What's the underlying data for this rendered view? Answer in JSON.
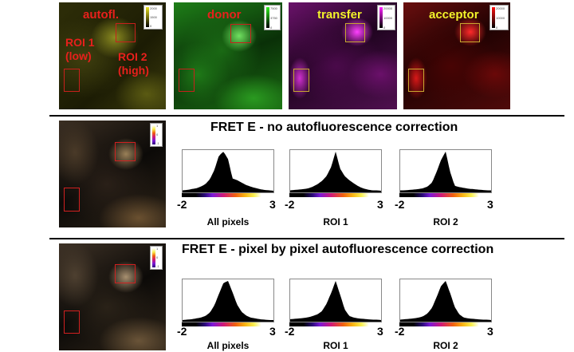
{
  "top_row": {
    "panels": [
      {
        "label": "autofl.",
        "label_color": "#e8201c",
        "channel_color": "#c8c42a",
        "scale": {
          "max": "2000",
          "mid": "1500",
          "min": "0"
        }
      },
      {
        "label": "donor",
        "label_color": "#e8201c",
        "channel_color": "#2fc21f",
        "scale": {
          "max": "7500",
          "mid": "3750",
          "min": "0"
        }
      },
      {
        "label": "transfer",
        "label_color": "#f2f22a",
        "channel_color": "#d21fd2",
        "scale": {
          "max": "20000",
          "mid": "10000",
          "min": "0"
        }
      },
      {
        "label": "acceptor",
        "label_color": "#f2f22a",
        "channel_color": "#d81414",
        "scale": {
          "max": "20000",
          "mid": "10000",
          "min": "0"
        }
      }
    ],
    "roi_annotations": {
      "roi1": "ROI 1\n(low)",
      "roi2": "ROI 2\n(high)"
    }
  },
  "sections": [
    {
      "title": "FRET E  - no autofluorescence correction",
      "image_scale": {
        "max": "1",
        "mid": "0",
        "min": "-1"
      },
      "histograms": [
        {
          "caption": "All  pixels",
          "xmin": "-2",
          "xmax": "3"
        },
        {
          "caption": "ROI 1",
          "xmin": "-2",
          "xmax": "3"
        },
        {
          "caption": "ROI 2",
          "xmin": "-2",
          "xmax": "3"
        }
      ]
    },
    {
      "title": "FRET E  - pixel by pixel autofluorescence correction",
      "image_scale": {
        "max": "1",
        "mid": "0",
        "min": "-1"
      },
      "histograms": [
        {
          "caption": "All pixels",
          "xmin": "-2",
          "xmax": "3"
        },
        {
          "caption": "ROI 1",
          "xmin": "-2",
          "xmax": "3"
        },
        {
          "caption": "ROI 2",
          "xmin": "-2",
          "xmax": "3"
        }
      ]
    }
  ],
  "chart_data": [
    {
      "type": "bar",
      "title": "FRET E - no autofluorescence correction: All pixels",
      "xlabel": "All  pixels",
      "ylabel": "",
      "xlim": [
        -2,
        3
      ],
      "x": [
        -2.0,
        -1.75,
        -1.5,
        -1.25,
        -1.0,
        -0.75,
        -0.5,
        -0.25,
        0.0,
        0.25,
        0.5,
        0.75,
        1.0,
        1.25,
        1.5,
        1.75,
        2.0,
        2.25,
        2.5,
        2.75,
        3.0
      ],
      "values": [
        0.05,
        0.06,
        0.08,
        0.1,
        0.14,
        0.2,
        0.32,
        0.55,
        0.9,
        1.0,
        0.82,
        0.34,
        0.3,
        0.24,
        0.18,
        0.14,
        0.11,
        0.08,
        0.06,
        0.05,
        0.04
      ]
    },
    {
      "type": "bar",
      "title": "FRET E - no autofluorescence correction: ROI 1",
      "xlabel": "ROI 1",
      "ylabel": "",
      "xlim": [
        -2,
        3
      ],
      "x": [
        -2.0,
        -1.75,
        -1.5,
        -1.25,
        -1.0,
        -0.75,
        -0.5,
        -0.25,
        0.0,
        0.25,
        0.5,
        0.75,
        1.0,
        1.25,
        1.5,
        1.75,
        2.0,
        2.25,
        2.5,
        2.75,
        3.0
      ],
      "values": [
        0.05,
        0.06,
        0.07,
        0.08,
        0.1,
        0.14,
        0.2,
        0.28,
        0.4,
        0.62,
        1.0,
        0.58,
        0.4,
        0.3,
        0.22,
        0.15,
        0.1,
        0.07,
        0.05,
        0.05,
        0.04
      ]
    },
    {
      "type": "bar",
      "title": "FRET E - no autofluorescence correction: ROI 2",
      "xlabel": "ROI 2",
      "ylabel": "",
      "xlim": [
        -2,
        3
      ],
      "x": [
        -2.0,
        -1.75,
        -1.5,
        -1.25,
        -1.0,
        -0.75,
        -0.5,
        -0.25,
        0.0,
        0.25,
        0.5,
        0.75,
        1.0,
        1.25,
        1.5,
        1.75,
        2.0,
        2.25,
        2.5,
        2.75,
        3.0
      ],
      "values": [
        0.05,
        0.05,
        0.06,
        0.07,
        0.08,
        0.1,
        0.14,
        0.24,
        0.5,
        0.8,
        1.0,
        0.5,
        0.16,
        0.13,
        0.11,
        0.09,
        0.08,
        0.07,
        0.06,
        0.05,
        0.05
      ]
    },
    {
      "type": "bar",
      "title": "FRET E - pixel by pixel autofluorescence correction: All pixels",
      "xlabel": "All pixels",
      "ylabel": "",
      "xlim": [
        -2,
        3
      ],
      "x": [
        -2.0,
        -1.75,
        -1.5,
        -1.25,
        -1.0,
        -0.75,
        -0.5,
        -0.25,
        0.0,
        0.25,
        0.5,
        0.75,
        1.0,
        1.25,
        1.5,
        1.75,
        2.0,
        2.25,
        2.5,
        2.75,
        3.0
      ],
      "values": [
        0.04,
        0.05,
        0.06,
        0.08,
        0.1,
        0.14,
        0.22,
        0.4,
        0.68,
        0.95,
        1.0,
        0.72,
        0.42,
        0.24,
        0.15,
        0.1,
        0.08,
        0.06,
        0.05,
        0.04,
        0.04
      ]
    },
    {
      "type": "bar",
      "title": "FRET E - pixel by pixel autofluorescence correction: ROI 1",
      "xlabel": "ROI 1",
      "ylabel": "",
      "xlim": [
        -2,
        3
      ],
      "x": [
        -2.0,
        -1.75,
        -1.5,
        -1.25,
        -1.0,
        -0.75,
        -0.5,
        -0.25,
        0.0,
        0.25,
        0.5,
        0.75,
        1.0,
        1.25,
        1.5,
        1.75,
        2.0,
        2.25,
        2.5,
        2.75,
        3.0
      ],
      "values": [
        0.06,
        0.07,
        0.08,
        0.09,
        0.11,
        0.14,
        0.18,
        0.26,
        0.44,
        0.7,
        1.0,
        0.66,
        0.3,
        0.14,
        0.1,
        0.08,
        0.07,
        0.06,
        0.05,
        0.05,
        0.04
      ]
    },
    {
      "type": "bar",
      "title": "FRET E - pixel by pixel autofluorescence correction: ROI 2",
      "xlabel": "ROI 2",
      "ylabel": "",
      "xlim": [
        -2,
        3
      ],
      "x": [
        -2.0,
        -1.75,
        -1.5,
        -1.25,
        -1.0,
        -0.75,
        -0.5,
        -0.25,
        0.0,
        0.25,
        0.5,
        0.75,
        1.0,
        1.25,
        1.5,
        1.75,
        2.0,
        2.25,
        2.5,
        2.75,
        3.0
      ],
      "values": [
        0.05,
        0.06,
        0.07,
        0.08,
        0.1,
        0.13,
        0.2,
        0.34,
        0.6,
        0.88,
        1.0,
        0.7,
        0.36,
        0.18,
        0.1,
        0.08,
        0.07,
        0.06,
        0.05,
        0.05,
        0.04
      ]
    }
  ],
  "colors": {
    "roi_red": "#c8201c",
    "roi_yellow": "#c8a830",
    "fret_lut": [
      "#000000",
      "#2a0a7a",
      "#7a18d8",
      "#d01878",
      "#f06010",
      "#f8b010",
      "#f8f050",
      "#ffffff"
    ]
  }
}
